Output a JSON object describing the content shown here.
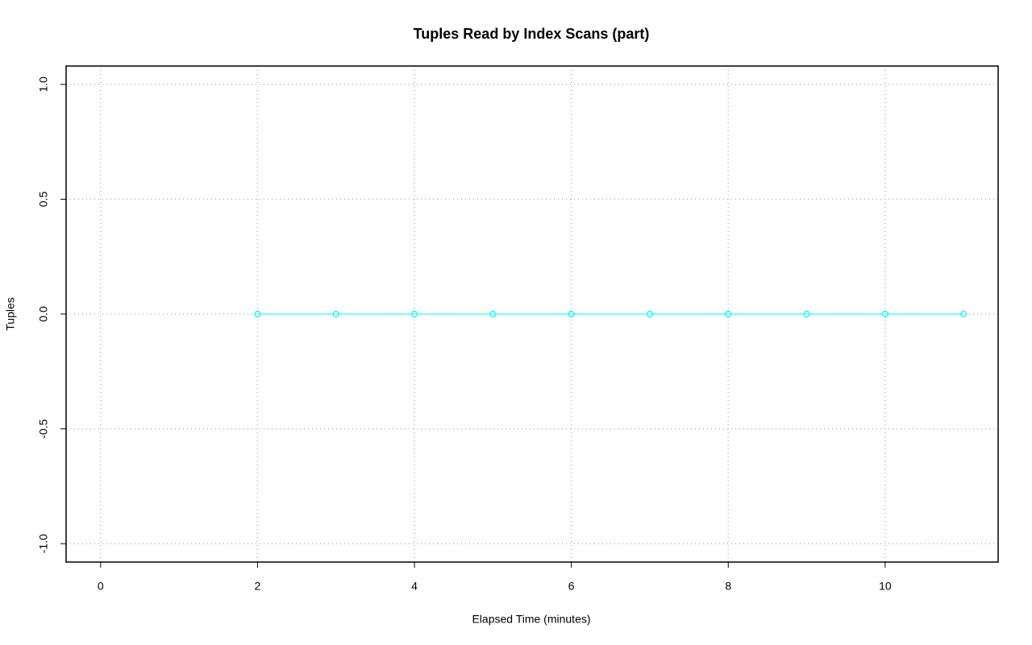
{
  "chart_data": {
    "type": "line",
    "title": "Tuples Read by Index Scans (part)",
    "x_label": "Elapsed Time (minutes)",
    "y_label": "Tuples",
    "x": [
      2,
      3,
      4,
      5,
      6,
      7,
      8,
      9,
      10,
      11
    ],
    "series": [
      {
        "color": "#00ffff",
        "values": [
          0,
          0,
          0,
          0,
          0,
          0,
          0,
          0,
          0,
          0
        ]
      }
    ],
    "xlim": [
      -0.44,
      11.44
    ],
    "ylim": [
      -1.08,
      1.08
    ],
    "xticks": [
      0,
      2,
      4,
      6,
      8,
      10
    ],
    "yticks": [
      {
        "value": -1,
        "label": "-1.0"
      },
      -0.5,
      {
        "value": 0,
        "label": "0.0"
      },
      0.5,
      {
        "value": 1,
        "label": "1.0"
      }
    ],
    "grid": true,
    "markers": true
  }
}
